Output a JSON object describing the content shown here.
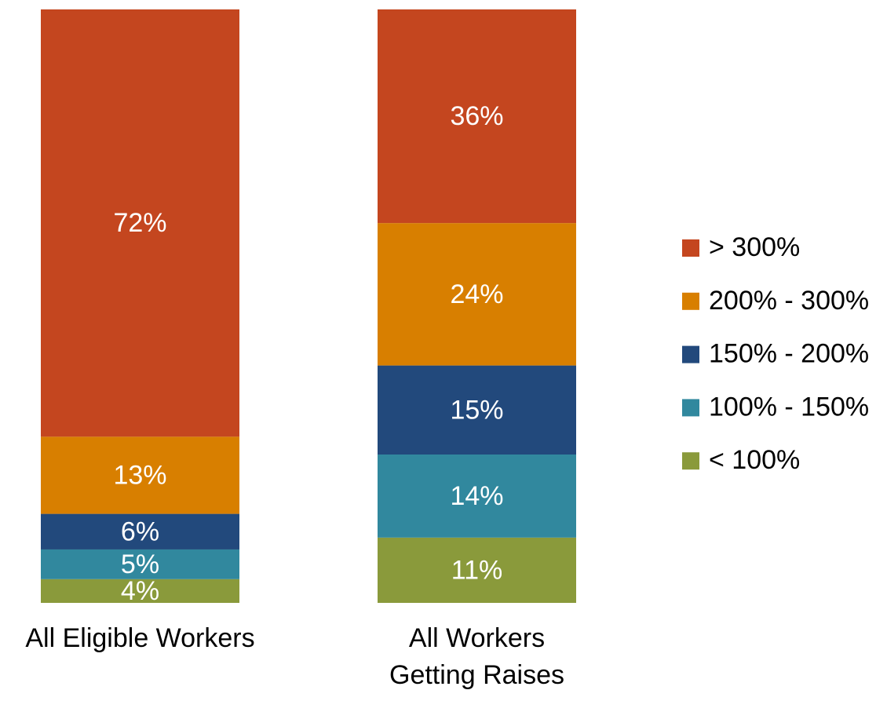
{
  "chart_data": {
    "type": "stacked_bar",
    "categories": [
      "All Eligible Workers",
      "All Workers Getting Raises"
    ],
    "series": [
      {
        "name": "< 100%",
        "color": "#8a9a3b",
        "values": [
          4,
          11
        ],
        "value_labels": [
          "4%",
          "11%"
        ]
      },
      {
        "name": "100% - 150%",
        "color": "#31889e",
        "values": [
          5,
          14
        ],
        "value_labels": [
          "5%",
          "14%"
        ]
      },
      {
        "name": "150% - 200%",
        "color": "#22497c",
        "values": [
          6,
          15
        ],
        "value_labels": [
          "6%",
          "15%"
        ]
      },
      {
        "name": "200% - 300%",
        "color": "#d87f00",
        "values": [
          13,
          24
        ],
        "value_labels": [
          "13%",
          "24%"
        ]
      },
      {
        "name": "> 300%",
        "color": "#c4461f",
        "values": [
          72,
          36
        ],
        "value_labels": [
          "72%",
          "36%"
        ]
      }
    ],
    "ylim": [
      0,
      100
    ],
    "legend": "right"
  }
}
